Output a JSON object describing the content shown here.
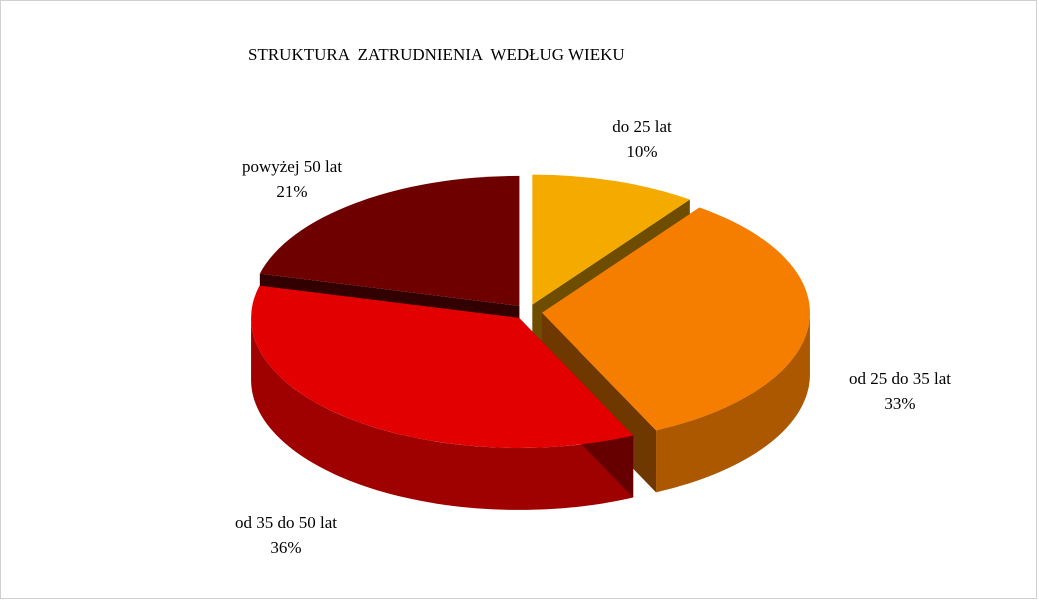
{
  "chart_data": {
    "type": "pie",
    "title": "STRUKTURA  ZATRUDNIENIA  WEDŁUG WIEKU",
    "categories": [
      "do 25 lat",
      "od 25 do 35 lat",
      "od 35 do 50 lat",
      "powyżej 50 lat"
    ],
    "values": [
      10,
      33,
      36,
      21
    ],
    "value_labels": [
      "10%",
      "33%",
      "36%",
      "21%"
    ],
    "colors": [
      "#f5aa00",
      "#f57d00",
      "#e30000",
      "#6e0000"
    ]
  }
}
